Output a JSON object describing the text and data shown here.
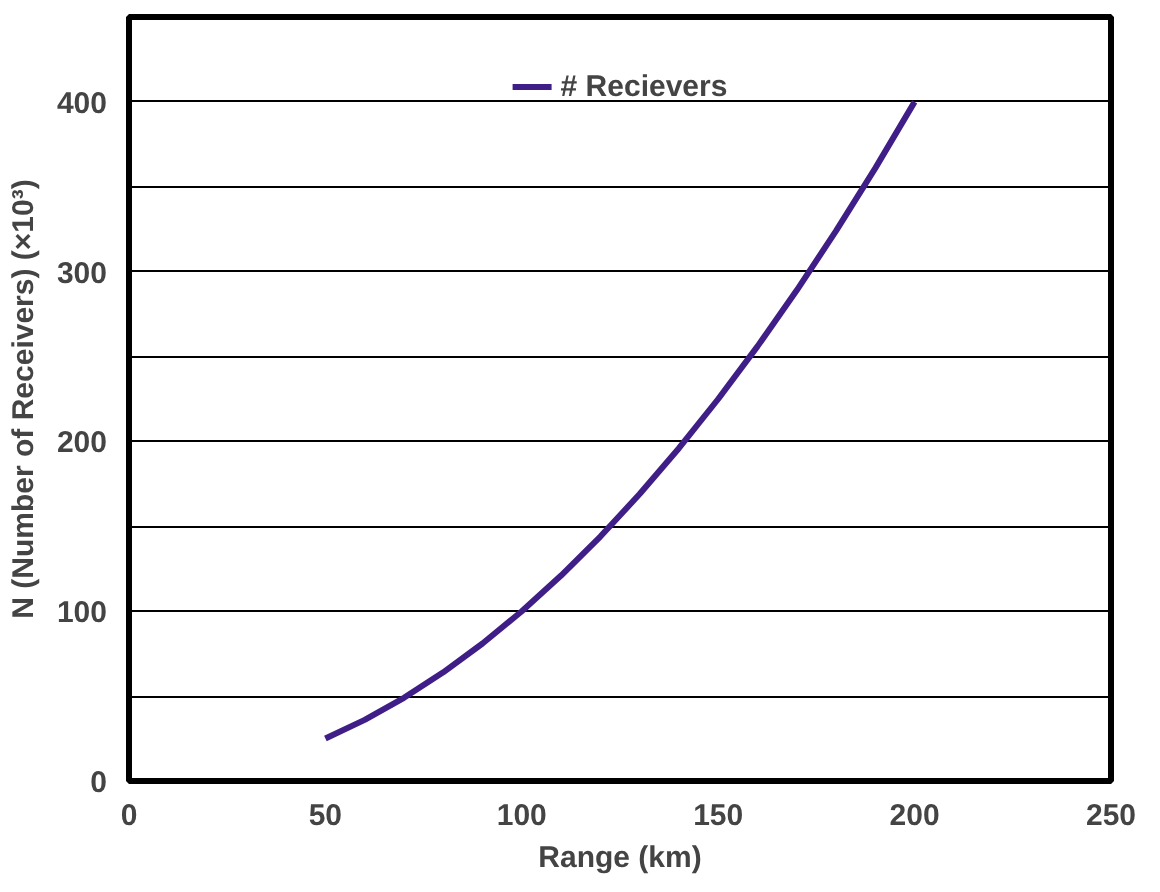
{
  "chart_data": {
    "type": "line",
    "xlabel": "Range (km)",
    "ylabel": "N (Number of Receivers) (×10³)",
    "x": [
      50,
      60,
      70,
      80,
      90,
      100,
      110,
      120,
      130,
      140,
      150,
      160,
      170,
      180,
      190,
      200
    ],
    "series": [
      {
        "name": "# Recievers",
        "color": "#3f1f87",
        "values": [
          25,
          36,
          49,
          64,
          81,
          100,
          121,
          144,
          169,
          196,
          225,
          256,
          289,
          324,
          361,
          400
        ]
      }
    ],
    "xlim": [
      0,
      250
    ],
    "xticks": [
      0,
      50,
      100,
      150,
      200,
      250
    ],
    "ylim": [
      0,
      450
    ],
    "yticks": [
      0,
      {
        "value": 50,
        "label": null
      },
      100,
      {
        "value": 150,
        "label": null
      },
      200,
      {
        "value": 250,
        "label": null
      },
      300,
      {
        "value": 350,
        "label": null
      },
      400
    ],
    "grid": "y",
    "legend": "top",
    "marker": "none",
    "line_style": "solid"
  }
}
